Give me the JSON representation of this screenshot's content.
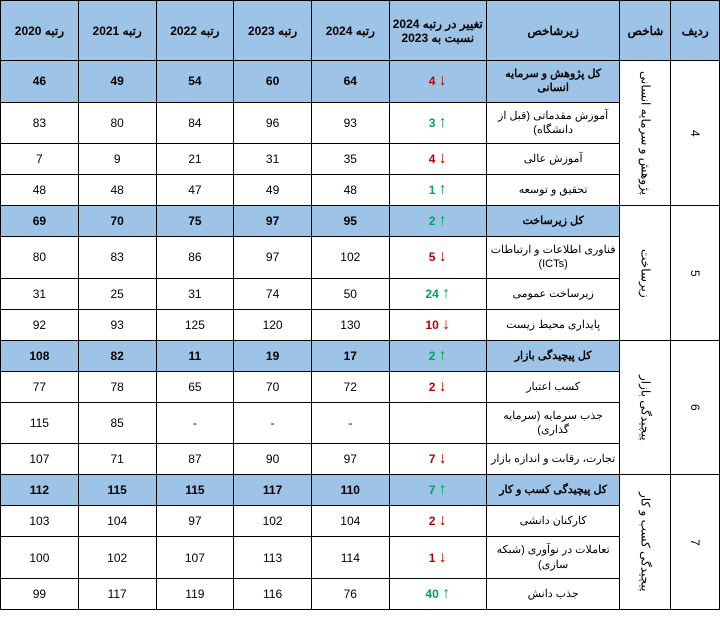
{
  "headers": {
    "row": "ردیف",
    "index": "شاخص",
    "sub": "زیرشاخص",
    "change": "تغییر در رتبه 2024 نسبت به 2023",
    "y2024": "رتبه 2024",
    "y2023": "رتبه 2023",
    "y2022": "رتبه 2022",
    "y2021": "رتبه 2021",
    "y2020": "رتبه 2020"
  },
  "colors": {
    "header_bg": "#9dc3e6",
    "up": "#00a651",
    "down": "#c00000",
    "border": "#000000",
    "bg": "#ffffff"
  },
  "groups": [
    {
      "row_num": "4",
      "index_label": "پژوهش و سرمایه انسانی",
      "rows": [
        {
          "sub": "کل پژوهش و سرمایه انسانی",
          "total": true,
          "change_val": "4",
          "dir": "down",
          "y24": "64",
          "y23": "60",
          "y22": "54",
          "y21": "49",
          "y20": "46"
        },
        {
          "sub": "آموزش مقدماتی (قبل از دانشگاه)",
          "change_val": "3",
          "dir": "up",
          "y24": "93",
          "y23": "96",
          "y22": "84",
          "y21": "80",
          "y20": "83"
        },
        {
          "sub": "آموزش عالی",
          "change_val": "4",
          "dir": "down",
          "y24": "35",
          "y23": "31",
          "y22": "21",
          "y21": "9",
          "y20": "7"
        },
        {
          "sub": "تحقیق و توسعه",
          "change_val": "1",
          "dir": "up",
          "y24": "48",
          "y23": "49",
          "y22": "47",
          "y21": "48",
          "y20": "48"
        }
      ]
    },
    {
      "row_num": "5",
      "index_label": "زیرساخت",
      "rows": [
        {
          "sub": "کل زیرساخت",
          "total": true,
          "change_val": "2",
          "dir": "up",
          "y24": "95",
          "y23": "97",
          "y22": "75",
          "y21": "70",
          "y20": "69"
        },
        {
          "sub": "فناوری اطلاعات و ارتباطات (ICTs)",
          "change_val": "5",
          "dir": "down",
          "y24": "102",
          "y23": "97",
          "y22": "86",
          "y21": "83",
          "y20": "80"
        },
        {
          "sub": "زیرساخت عمومی",
          "change_val": "24",
          "dir": "up",
          "y24": "50",
          "y23": "74",
          "y22": "31",
          "y21": "25",
          "y20": "31"
        },
        {
          "sub": "پایداری محیط زیست",
          "change_val": "10",
          "dir": "down",
          "y24": "130",
          "y23": "120",
          "y22": "125",
          "y21": "93",
          "y20": "92"
        }
      ]
    },
    {
      "row_num": "6",
      "index_label": "پیچیدگی بازار",
      "rows": [
        {
          "sub": "کل پیچیدگی بازار",
          "total": true,
          "change_val": "2",
          "dir": "up",
          "y24": "17",
          "y23": "19",
          "y22": "11",
          "y21": "82",
          "y20": "108"
        },
        {
          "sub": "کسب اعتبار",
          "change_val": "2",
          "dir": "down",
          "y24": "72",
          "y23": "70",
          "y22": "65",
          "y21": "78",
          "y20": "77"
        },
        {
          "sub": "جذب سرمایه (سرمایه گذاری)",
          "change_val": "",
          "dir": "none",
          "y24": "-",
          "y23": "-",
          "y22": "-",
          "y21": "85",
          "y20": "115"
        },
        {
          "sub": "تجارت، رقابت و اندازه بازار",
          "change_val": "7",
          "dir": "down",
          "y24": "97",
          "y23": "90",
          "y22": "87",
          "y21": "71",
          "y20": "107"
        }
      ]
    },
    {
      "row_num": "7",
      "index_label": "پیچیدگی کسب و کار",
      "rows": [
        {
          "sub": "کل پیچیدگی کسب و کار",
          "total": true,
          "change_val": "7",
          "dir": "up",
          "y24": "110",
          "y23": "117",
          "y22": "115",
          "y21": "115",
          "y20": "112"
        },
        {
          "sub": "کارکنان دانشی",
          "change_val": "2",
          "dir": "down",
          "y24": "104",
          "y23": "102",
          "y22": "97",
          "y21": "104",
          "y20": "103"
        },
        {
          "sub": "تعاملات در نوآوری (شبکه سازی)",
          "change_val": "1",
          "dir": "down",
          "y24": "114",
          "y23": "113",
          "y22": "107",
          "y21": "102",
          "y20": "100"
        },
        {
          "sub": "جذب دانش",
          "change_val": "40",
          "dir": "up",
          "y24": "76",
          "y23": "116",
          "y22": "119",
          "y21": "117",
          "y20": "99"
        }
      ]
    }
  ],
  "arrows": {
    "up": "↑",
    "down": "↓"
  }
}
